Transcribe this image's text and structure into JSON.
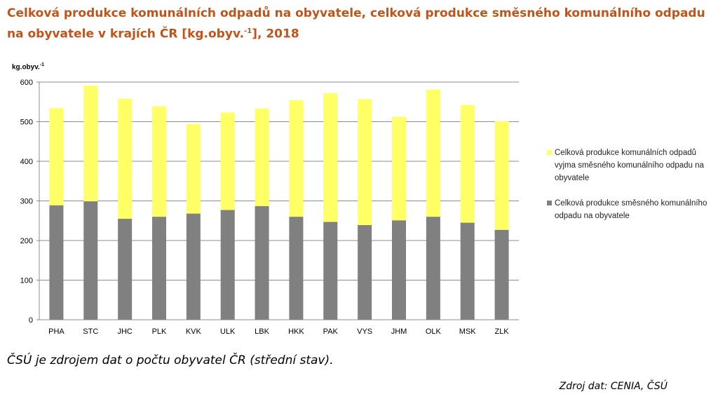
{
  "title_main": "Celková produkce komunálních odpadů na obyvatele, celková produkce směsného komunálního odpadu na obyvatele v krajích ČR [kg.obyv.",
  "title_sup": "-1",
  "title_end": "], 2018",
  "note": "ČSÚ je zdrojem dat o počtu obyvatel ČR (střední stav).",
  "source": "Zdroj dat: CENIA, ČSÚ",
  "colors": {
    "title": "#C0541A",
    "yellow": "#FFFF66",
    "gray": "#808080"
  },
  "chart_data": {
    "type": "bar",
    "stacked": true,
    "ylabel": "kg.obyv.",
    "ylabel_sup": "-1",
    "ylim": [
      0,
      600
    ],
    "yticks": [
      0,
      100,
      200,
      300,
      400,
      500,
      600
    ],
    "grid": true,
    "legend_position": "right",
    "categories": [
      "PHA",
      "STC",
      "JHC",
      "PLK",
      "KVK",
      "ULK",
      "LBK",
      "HKK",
      "PAK",
      "VYS",
      "JHM",
      "OLK",
      "MSK",
      "ZLK"
    ],
    "series": [
      {
        "name": "Celková produkce směsného komunálního odpadu na obyvatele",
        "color": "#808080",
        "values": [
          289,
          299,
          255,
          260,
          268,
          277,
          287,
          260,
          247,
          239,
          251,
          260,
          245,
          227
        ]
      },
      {
        "name": "Celková produkce komunálních odpadů vyjma směsného komunálního odpadu na obyvatele",
        "color": "#FFFF66",
        "values": [
          245,
          292,
          303,
          279,
          226,
          246,
          246,
          294,
          325,
          318,
          261,
          321,
          297,
          274
        ]
      }
    ]
  }
}
